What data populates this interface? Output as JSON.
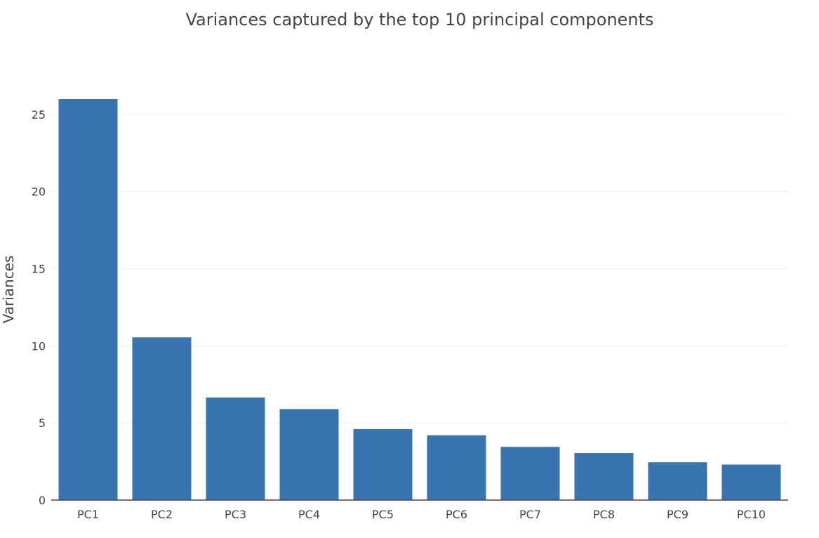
{
  "chart_data": {
    "type": "bar",
    "title": "Variances captured by the top 10 principal components",
    "xlabel": "",
    "ylabel": "Variances",
    "categories": [
      "PC1",
      "PC2",
      "PC3",
      "PC4",
      "PC5",
      "PC6",
      "PC7",
      "PC8",
      "PC9",
      "PC10"
    ],
    "values": [
      26.0,
      10.55,
      6.65,
      5.9,
      4.6,
      4.2,
      3.45,
      3.05,
      2.45,
      2.3
    ],
    "ylim": [
      0,
      27.5
    ],
    "yticks": [
      0,
      5,
      10,
      15,
      20,
      25
    ],
    "grid": true,
    "legend": "none",
    "bar_color": "#3a74af"
  }
}
